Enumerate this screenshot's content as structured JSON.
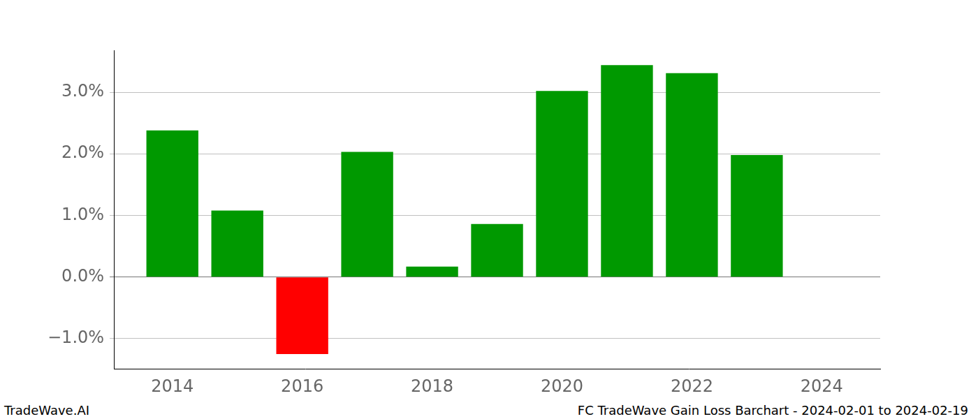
{
  "chart_data": {
    "type": "bar",
    "x": [
      2014,
      2015,
      2016,
      2017,
      2018,
      2019,
      2020,
      2021,
      2022,
      2023
    ],
    "values": [
      2.38,
      1.08,
      -1.25,
      2.03,
      0.17,
      0.86,
      3.02,
      3.44,
      3.31,
      1.98
    ],
    "colors": [
      "#009900",
      "#009900",
      "#ff0000",
      "#009900",
      "#009900",
      "#009900",
      "#009900",
      "#009900",
      "#009900",
      "#009900"
    ],
    "xlim": [
      2013.1,
      2024.9
    ],
    "xticks": [
      2014,
      2016,
      2018,
      2020,
      2022,
      2024
    ],
    "ylim": [
      -1.49,
      3.68
    ],
    "yticks": [
      {
        "value": -1,
        "label": "−1.0%"
      },
      {
        "value": 0,
        "label": "0.0%"
      },
      {
        "value": 1,
        "label": "1.0%"
      },
      {
        "value": 2,
        "label": "2.0%"
      },
      {
        "value": 3,
        "label": "3.0%"
      }
    ],
    "grid": "y",
    "annotations": [
      "TradeWave.AI",
      "FC TradeWave Gain Loss Barchart - 2024-02-01 to 2024-02-19"
    ]
  }
}
